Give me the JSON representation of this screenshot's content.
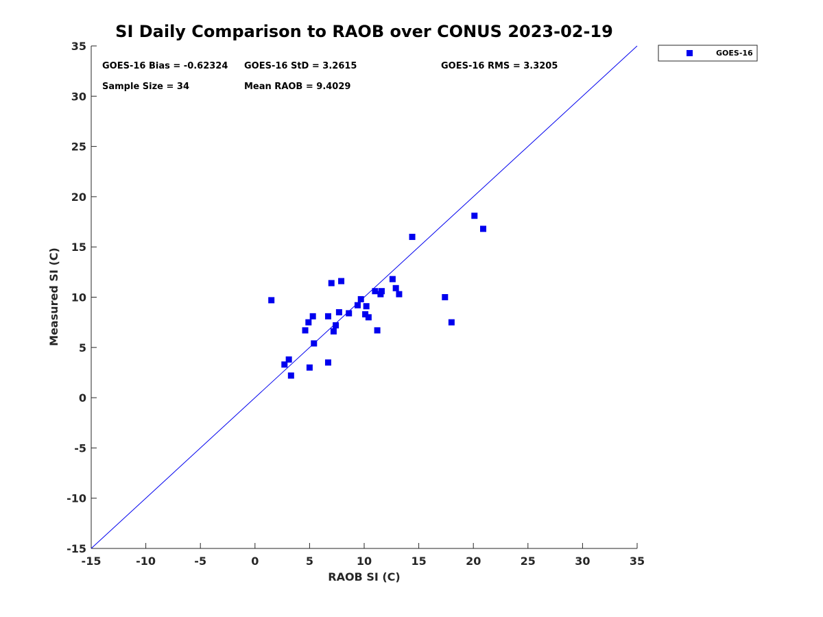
{
  "chart_data": {
    "type": "scatter",
    "title": "SI Daily Comparison to RAOB over CONUS 2023-02-19",
    "xlabel": "RAOB SI (C)",
    "ylabel": "Measured SI (C)",
    "xlim": [
      -15,
      35
    ],
    "ylim": [
      -15,
      35
    ],
    "xticks": [
      -15,
      -10,
      -5,
      0,
      5,
      10,
      15,
      20,
      25,
      30,
      35
    ],
    "yticks": [
      -15,
      -10,
      -5,
      0,
      5,
      10,
      15,
      20,
      25,
      30,
      35
    ],
    "grid": false,
    "legend_position": "outside-top-right",
    "colors": {
      "series": "#0000ee",
      "axis": "#262626",
      "reference_line": "#0000ee"
    },
    "reference_line": {
      "name": "one-to-one line",
      "x": [
        -15,
        35
      ],
      "y": [
        -15,
        35
      ]
    },
    "stats": [
      {
        "id": "bias",
        "text": "GOES-16 Bias = -0.62324"
      },
      {
        "id": "std",
        "text": "GOES-16 StD = 3.2615"
      },
      {
        "id": "rms",
        "text": "GOES-16 RMS = 3.3205"
      },
      {
        "id": "sample",
        "text": "Sample Size = 34"
      },
      {
        "id": "mean",
        "text": "Mean RAOB = 9.4029"
      }
    ],
    "series": [
      {
        "name": "GOES-16",
        "marker": "square",
        "points": [
          [
            1.5,
            9.7
          ],
          [
            2.7,
            3.3
          ],
          [
            3.1,
            3.8
          ],
          [
            3.3,
            2.2
          ],
          [
            4.6,
            6.7
          ],
          [
            4.9,
            7.5
          ],
          [
            5.0,
            3.0
          ],
          [
            5.3,
            8.1
          ],
          [
            5.4,
            5.4
          ],
          [
            6.7,
            8.1
          ],
          [
            6.7,
            3.5
          ],
          [
            7.0,
            11.4
          ],
          [
            7.2,
            6.6
          ],
          [
            7.4,
            7.2
          ],
          [
            7.7,
            8.5
          ],
          [
            7.9,
            11.6
          ],
          [
            8.6,
            8.4
          ],
          [
            9.4,
            9.2
          ],
          [
            9.7,
            9.8
          ],
          [
            10.1,
            8.3
          ],
          [
            10.2,
            9.1
          ],
          [
            10.4,
            8.0
          ],
          [
            11.0,
            10.6
          ],
          [
            11.2,
            6.7
          ],
          [
            11.5,
            10.3
          ],
          [
            11.6,
            10.6
          ],
          [
            12.6,
            11.8
          ],
          [
            12.9,
            10.9
          ],
          [
            13.2,
            10.3
          ],
          [
            14.4,
            16.0
          ],
          [
            17.4,
            10.0
          ],
          [
            18.0,
            7.5
          ],
          [
            20.1,
            18.1
          ],
          [
            20.9,
            16.8
          ]
        ]
      }
    ]
  }
}
